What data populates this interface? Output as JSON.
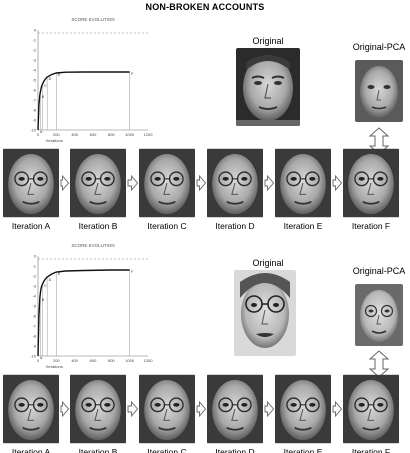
{
  "title": "NON-BROKEN ACCOUNTS",
  "panels": [
    {
      "original_label": "Original",
      "pca_label": "Original-PCA",
      "iteration_labels": [
        "Iteration A",
        "Iteration B",
        "Iteration C",
        "Iteration D",
        "Iteration E",
        "Iteration F"
      ],
      "chart_data": {
        "type": "line",
        "title": "SCORE EVOLUTION",
        "xlabel": "Iterations",
        "ylabel": "",
        "xlim": [
          0,
          1200
        ],
        "ylim": [
          -10,
          0
        ],
        "xticks": [
          "0",
          "200",
          "400",
          "600",
          "800",
          "1000",
          "1200"
        ],
        "yticks": [
          "0",
          "-1",
          "-2",
          "-3",
          "-4",
          "-5",
          "-6",
          "-7",
          "-8",
          "-9",
          "-10"
        ],
        "threshold": -0.3,
        "points": [
          {
            "label": "A",
            "x": 5,
            "y": -10
          },
          {
            "label": "B",
            "x": 25,
            "y": -6.5
          },
          {
            "label": "C",
            "x": 50,
            "y": -5.4
          },
          {
            "label": "D",
            "x": 100,
            "y": -4.7
          },
          {
            "label": "E",
            "x": 200,
            "y": -4.3
          },
          {
            "label": "F",
            "x": 1000,
            "y": -4.2
          }
        ],
        "series": [
          {
            "x": [
              0,
              10,
              20,
              30,
              40,
              60,
              80,
              100,
              150,
              200,
              300,
              500,
              800,
              1000
            ],
            "y": [
              -10,
              -7.5,
              -6.5,
              -6,
              -5.6,
              -5.2,
              -4.9,
              -4.7,
              -4.45,
              -4.3,
              -4.22,
              -4.2,
              -4.2,
              -4.2
            ]
          }
        ]
      }
    },
    {
      "original_label": "Original",
      "pca_label": "Original-PCA",
      "iteration_labels": [
        "Iteration A",
        "Iteration B",
        "Iteration C",
        "Iteration D",
        "Iteration E",
        "Iteration F"
      ],
      "chart_data": {
        "type": "line",
        "title": "SCORE EVOLUTION",
        "xlabel": "Iterations",
        "ylabel": "",
        "xlim": [
          0,
          1200
        ],
        "ylim": [
          -10,
          0
        ],
        "xticks": [
          "0",
          "200",
          "400",
          "600",
          "800",
          "1000",
          "1200"
        ],
        "yticks": [
          "0",
          "-1",
          "-2",
          "-3",
          "-4",
          "-5",
          "-6",
          "-7",
          "-8",
          "-9",
          "-10"
        ],
        "threshold": -0.3,
        "points": [
          {
            "label": "A",
            "x": 5,
            "y": -10
          },
          {
            "label": "B",
            "x": 25,
            "y": -4.2
          },
          {
            "label": "C",
            "x": 50,
            "y": -2.8
          },
          {
            "label": "D",
            "x": 100,
            "y": -2.2
          },
          {
            "label": "E",
            "x": 200,
            "y": -1.6
          },
          {
            "label": "F",
            "x": 1000,
            "y": -1.4
          }
        ],
        "series": [
          {
            "x": [
              0,
              10,
              20,
              30,
              40,
              60,
              80,
              100,
              150,
              200,
              300,
              500,
              800,
              1000
            ],
            "y": [
              -10,
              -6,
              -4.2,
              -3.4,
              -3,
              -2.6,
              -2.3,
              -2.1,
              -1.8,
              -1.6,
              -1.5,
              -1.45,
              -1.4,
              -1.4
            ]
          }
        ]
      }
    }
  ]
}
